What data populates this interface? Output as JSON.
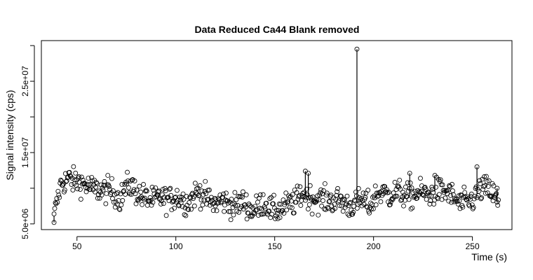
{
  "chart_data": {
    "type": "scatter",
    "title": "Data Reduced Ca44 Blank removed",
    "xlabel": "Time (s)",
    "ylabel": "Signal intensity (cps)",
    "xlim": [
      32,
      270
    ],
    "ylim": [
      4200000,
      30700000
    ],
    "xticks": [
      50,
      100,
      150,
      200,
      250
    ],
    "xtick_labels": [
      "50",
      "100",
      "150",
      "200",
      "250"
    ],
    "yticks": [
      5000000,
      10000000,
      15000000,
      20000000,
      25000000,
      30000000
    ],
    "yticks_labeled": [
      {
        "value": 5000000,
        "label": "5.0e+06"
      },
      {
        "value": 15000000,
        "label": "1.5e+07"
      },
      {
        "value": 25000000,
        "label": "2.5e+07"
      }
    ],
    "marker": "open-circle",
    "spikes": [
      {
        "x": 38.4,
        "y": 5200000
      },
      {
        "x": 165.5,
        "y": 12400000
      },
      {
        "x": 167.0,
        "y": 12100000
      },
      {
        "x": 191.6,
        "y": 29500000
      },
      {
        "x": 218.3,
        "y": 12100000
      },
      {
        "x": 231.0,
        "y": 11800000
      },
      {
        "x": 252.3,
        "y": 13000000
      },
      {
        "x": 262.5,
        "y": 10000000
      }
    ],
    "series": [
      {
        "values": [
          {
            "x": 38,
            "y": 5100000
          },
          {
            "x": 39,
            "y": 7600000
          },
          {
            "x": 40,
            "y": 8400000
          },
          {
            "x": 42,
            "y": 10700000
          },
          {
            "x": 44,
            "y": 11000000
          },
          {
            "x": 46,
            "y": 11400000
          },
          {
            "x": 48,
            "y": 11000000
          },
          {
            "x": 50,
            "y": 11000000
          },
          {
            "x": 52,
            "y": 10800000
          },
          {
            "x": 54,
            "y": 10500000
          },
          {
            "x": 56,
            "y": 10200000
          },
          {
            "x": 58,
            "y": 10000000
          },
          {
            "x": 60,
            "y": 9800000
          },
          {
            "x": 62,
            "y": 9700000
          },
          {
            "x": 64,
            "y": 9700000
          },
          {
            "x": 66,
            "y": 9800000
          },
          {
            "x": 68,
            "y": 9500000
          },
          {
            "x": 70,
            "y": 9000000
          },
          {
            "x": 72,
            "y": 8500000
          },
          {
            "x": 74,
            "y": 9800000
          },
          {
            "x": 76,
            "y": 10500000
          },
          {
            "x": 78,
            "y": 10200000
          },
          {
            "x": 80,
            "y": 9500000
          },
          {
            "x": 82,
            "y": 9000000
          },
          {
            "x": 84,
            "y": 8800000
          },
          {
            "x": 86,
            "y": 8500000
          },
          {
            "x": 88,
            "y": 8300000
          },
          {
            "x": 90,
            "y": 8500000
          },
          {
            "x": 92,
            "y": 8700000
          },
          {
            "x": 94,
            "y": 8600000
          },
          {
            "x": 96,
            "y": 8300000
          },
          {
            "x": 98,
            "y": 8500000
          },
          {
            "x": 100,
            "y": 8900000
          },
          {
            "x": 102,
            "y": 8600000
          },
          {
            "x": 104,
            "y": 8200000
          },
          {
            "x": 106,
            "y": 8000000
          },
          {
            "x": 108,
            "y": 8500000
          },
          {
            "x": 110,
            "y": 9300000
          },
          {
            "x": 112,
            "y": 9500000
          },
          {
            "x": 114,
            "y": 9000000
          },
          {
            "x": 116,
            "y": 8500000
          },
          {
            "x": 118,
            "y": 8000000
          },
          {
            "x": 120,
            "y": 7800000
          },
          {
            "x": 122,
            "y": 8200000
          },
          {
            "x": 124,
            "y": 8300000
          },
          {
            "x": 126,
            "y": 8000000
          },
          {
            "x": 128,
            "y": 7600000
          },
          {
            "x": 130,
            "y": 7500000
          },
          {
            "x": 132,
            "y": 7800000
          },
          {
            "x": 134,
            "y": 8100000
          },
          {
            "x": 136,
            "y": 7600000
          },
          {
            "x": 138,
            "y": 6900000
          },
          {
            "x": 140,
            "y": 7000000
          },
          {
            "x": 142,
            "y": 7500000
          },
          {
            "x": 144,
            "y": 8000000
          },
          {
            "x": 146,
            "y": 7800000
          },
          {
            "x": 148,
            "y": 7000000
          },
          {
            "x": 150,
            "y": 6800000
          },
          {
            "x": 152,
            "y": 7000000
          },
          {
            "x": 154,
            "y": 7200000
          },
          {
            "x": 156,
            "y": 7600000
          },
          {
            "x": 158,
            "y": 7800000
          },
          {
            "x": 160,
            "y": 8000000
          },
          {
            "x": 162,
            "y": 8600000
          },
          {
            "x": 164,
            "y": 9300000
          },
          {
            "x": 166,
            "y": 9000000
          },
          {
            "x": 168,
            "y": 8700000
          },
          {
            "x": 170,
            "y": 8500000
          },
          {
            "x": 172,
            "y": 8400000
          },
          {
            "x": 174,
            "y": 8500000
          },
          {
            "x": 176,
            "y": 8300000
          },
          {
            "x": 178,
            "y": 8300000
          },
          {
            "x": 180,
            "y": 8200000
          },
          {
            "x": 182,
            "y": 8400000
          },
          {
            "x": 184,
            "y": 8100000
          },
          {
            "x": 186,
            "y": 7800000
          },
          {
            "x": 188,
            "y": 7500000
          },
          {
            "x": 190,
            "y": 7700000
          },
          {
            "x": 192,
            "y": 8000000
          },
          {
            "x": 194,
            "y": 8300000
          },
          {
            "x": 196,
            "y": 8000000
          },
          {
            "x": 198,
            "y": 7500000
          },
          {
            "x": 200,
            "y": 8500000
          },
          {
            "x": 202,
            "y": 9200000
          },
          {
            "x": 204,
            "y": 9500000
          },
          {
            "x": 206,
            "y": 9200000
          },
          {
            "x": 208,
            "y": 9000000
          },
          {
            "x": 210,
            "y": 9300000
          },
          {
            "x": 212,
            "y": 9500000
          },
          {
            "x": 214,
            "y": 9300000
          },
          {
            "x": 216,
            "y": 9000000
          },
          {
            "x": 218,
            "y": 8800000
          },
          {
            "x": 220,
            "y": 9000000
          },
          {
            "x": 222,
            "y": 9300000
          },
          {
            "x": 224,
            "y": 9500000
          },
          {
            "x": 226,
            "y": 9200000
          },
          {
            "x": 228,
            "y": 9000000
          },
          {
            "x": 230,
            "y": 9300000
          },
          {
            "x": 232,
            "y": 9700000
          },
          {
            "x": 234,
            "y": 9600000
          },
          {
            "x": 236,
            "y": 9500000
          },
          {
            "x": 238,
            "y": 9300000
          },
          {
            "x": 240,
            "y": 8800000
          },
          {
            "x": 242,
            "y": 8200000
          },
          {
            "x": 244,
            "y": 7800000
          },
          {
            "x": 246,
            "y": 8000000
          },
          {
            "x": 248,
            "y": 8100000
          },
          {
            "x": 250,
            "y": 8400000
          },
          {
            "x": 252,
            "y": 9000000
          },
          {
            "x": 254,
            "y": 9800000
          },
          {
            "x": 256,
            "y": 10000000
          },
          {
            "x": 258,
            "y": 9800000
          },
          {
            "x": 260,
            "y": 9300000
          },
          {
            "x": 262,
            "y": 8500000
          },
          {
            "x": 263,
            "y": 7500000
          }
        ]
      }
    ]
  }
}
